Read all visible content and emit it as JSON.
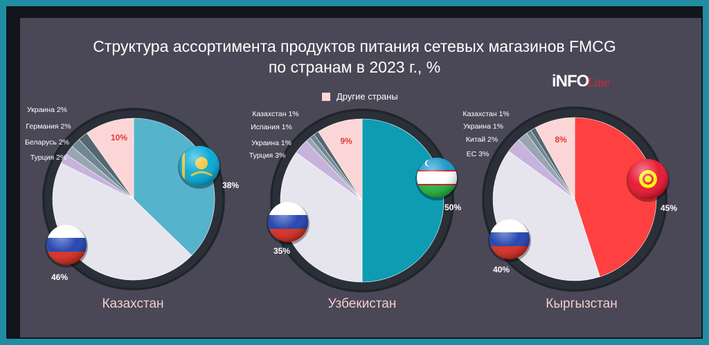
{
  "title": {
    "line1": "Структура ассортимента продуктов питания сетевых магазинов FMCG",
    "line2": "по странам в 2023 г., %"
  },
  "logo": {
    "part1": "iNFO",
    "part2": "Line"
  },
  "legend": {
    "label": "Другие страны",
    "color": "#fcd6d6"
  },
  "colors": {
    "kazakhstan": "#56b3cc",
    "uzbekistan": "#0e9cb2",
    "kyrgyzstan": "#ff4040",
    "russia": "#e6e5ee",
    "other": "#fcd6d6",
    "small1": "#c6b3dc",
    "small2": "#9aa4b2",
    "small3": "#6f8794",
    "small4": "#55676f"
  },
  "chart_data": [
    {
      "type": "pie",
      "name": "Казахстан",
      "slices": [
        {
          "label": "Казахстан",
          "value": 38,
          "value_label": "38%",
          "flag": "kazakhstan-flag-icon",
          "color": "#56b3cc"
        },
        {
          "label": "Россия",
          "value": 46,
          "value_label": "46%",
          "flag": "russia-flag-icon",
          "color": "#e6e5ee"
        },
        {
          "label": "Турция 2%",
          "value": 2,
          "color": "#c6b3dc"
        },
        {
          "label": "Беларусь 2%",
          "value": 2,
          "color": "#9aa4b2"
        },
        {
          "label": "Германия 2%",
          "value": 2,
          "color": "#6f8794"
        },
        {
          "label": "Украина 2%",
          "value": 2,
          "color": "#55676f"
        },
        {
          "label": "Другие страны",
          "value": 10,
          "value_label": "10%",
          "color": "#fcd6d6"
        }
      ]
    },
    {
      "type": "pie",
      "name": "Узбекистан",
      "slices": [
        {
          "label": "Узбекистан",
          "value": 50,
          "value_label": "50%",
          "flag": "uzbekistan-flag-icon",
          "color": "#0e9cb2"
        },
        {
          "label": "Россия",
          "value": 35,
          "value_label": "35%",
          "flag": "russia-flag-icon",
          "color": "#e6e5ee"
        },
        {
          "label": "Турция 3%",
          "value": 3,
          "color": "#c6b3dc"
        },
        {
          "label": "Украина 1%",
          "value": 1,
          "color": "#9aa4b2"
        },
        {
          "label": "Испания 1%",
          "value": 1,
          "color": "#6f8794"
        },
        {
          "label": "Казахстан 1%",
          "value": 1,
          "color": "#55676f"
        },
        {
          "label": "Другие страны",
          "value": 9,
          "value_label": "9%",
          "color": "#fcd6d6"
        }
      ]
    },
    {
      "type": "pie",
      "name": "Кыргызстан",
      "slices": [
        {
          "label": "Кыргызстан",
          "value": 45,
          "value_label": "45%",
          "flag": "kyrgyzstan-flag-icon",
          "color": "#ff4040"
        },
        {
          "label": "Россия",
          "value": 40,
          "value_label": "40%",
          "flag": "russia-flag-icon",
          "color": "#e6e5ee"
        },
        {
          "label": "ЕС 3%",
          "value": 3,
          "color": "#c6b3dc"
        },
        {
          "label": "Китай 2%",
          "value": 2,
          "color": "#9aa4b2"
        },
        {
          "label": "Украина 1%",
          "value": 1,
          "color": "#6f8794"
        },
        {
          "label": "Казахстан 1%",
          "value": 1,
          "color": "#55676f"
        },
        {
          "label": "Другие страны",
          "value": 8,
          "value_label": "8%",
          "color": "#fcd6d6"
        }
      ]
    }
  ]
}
